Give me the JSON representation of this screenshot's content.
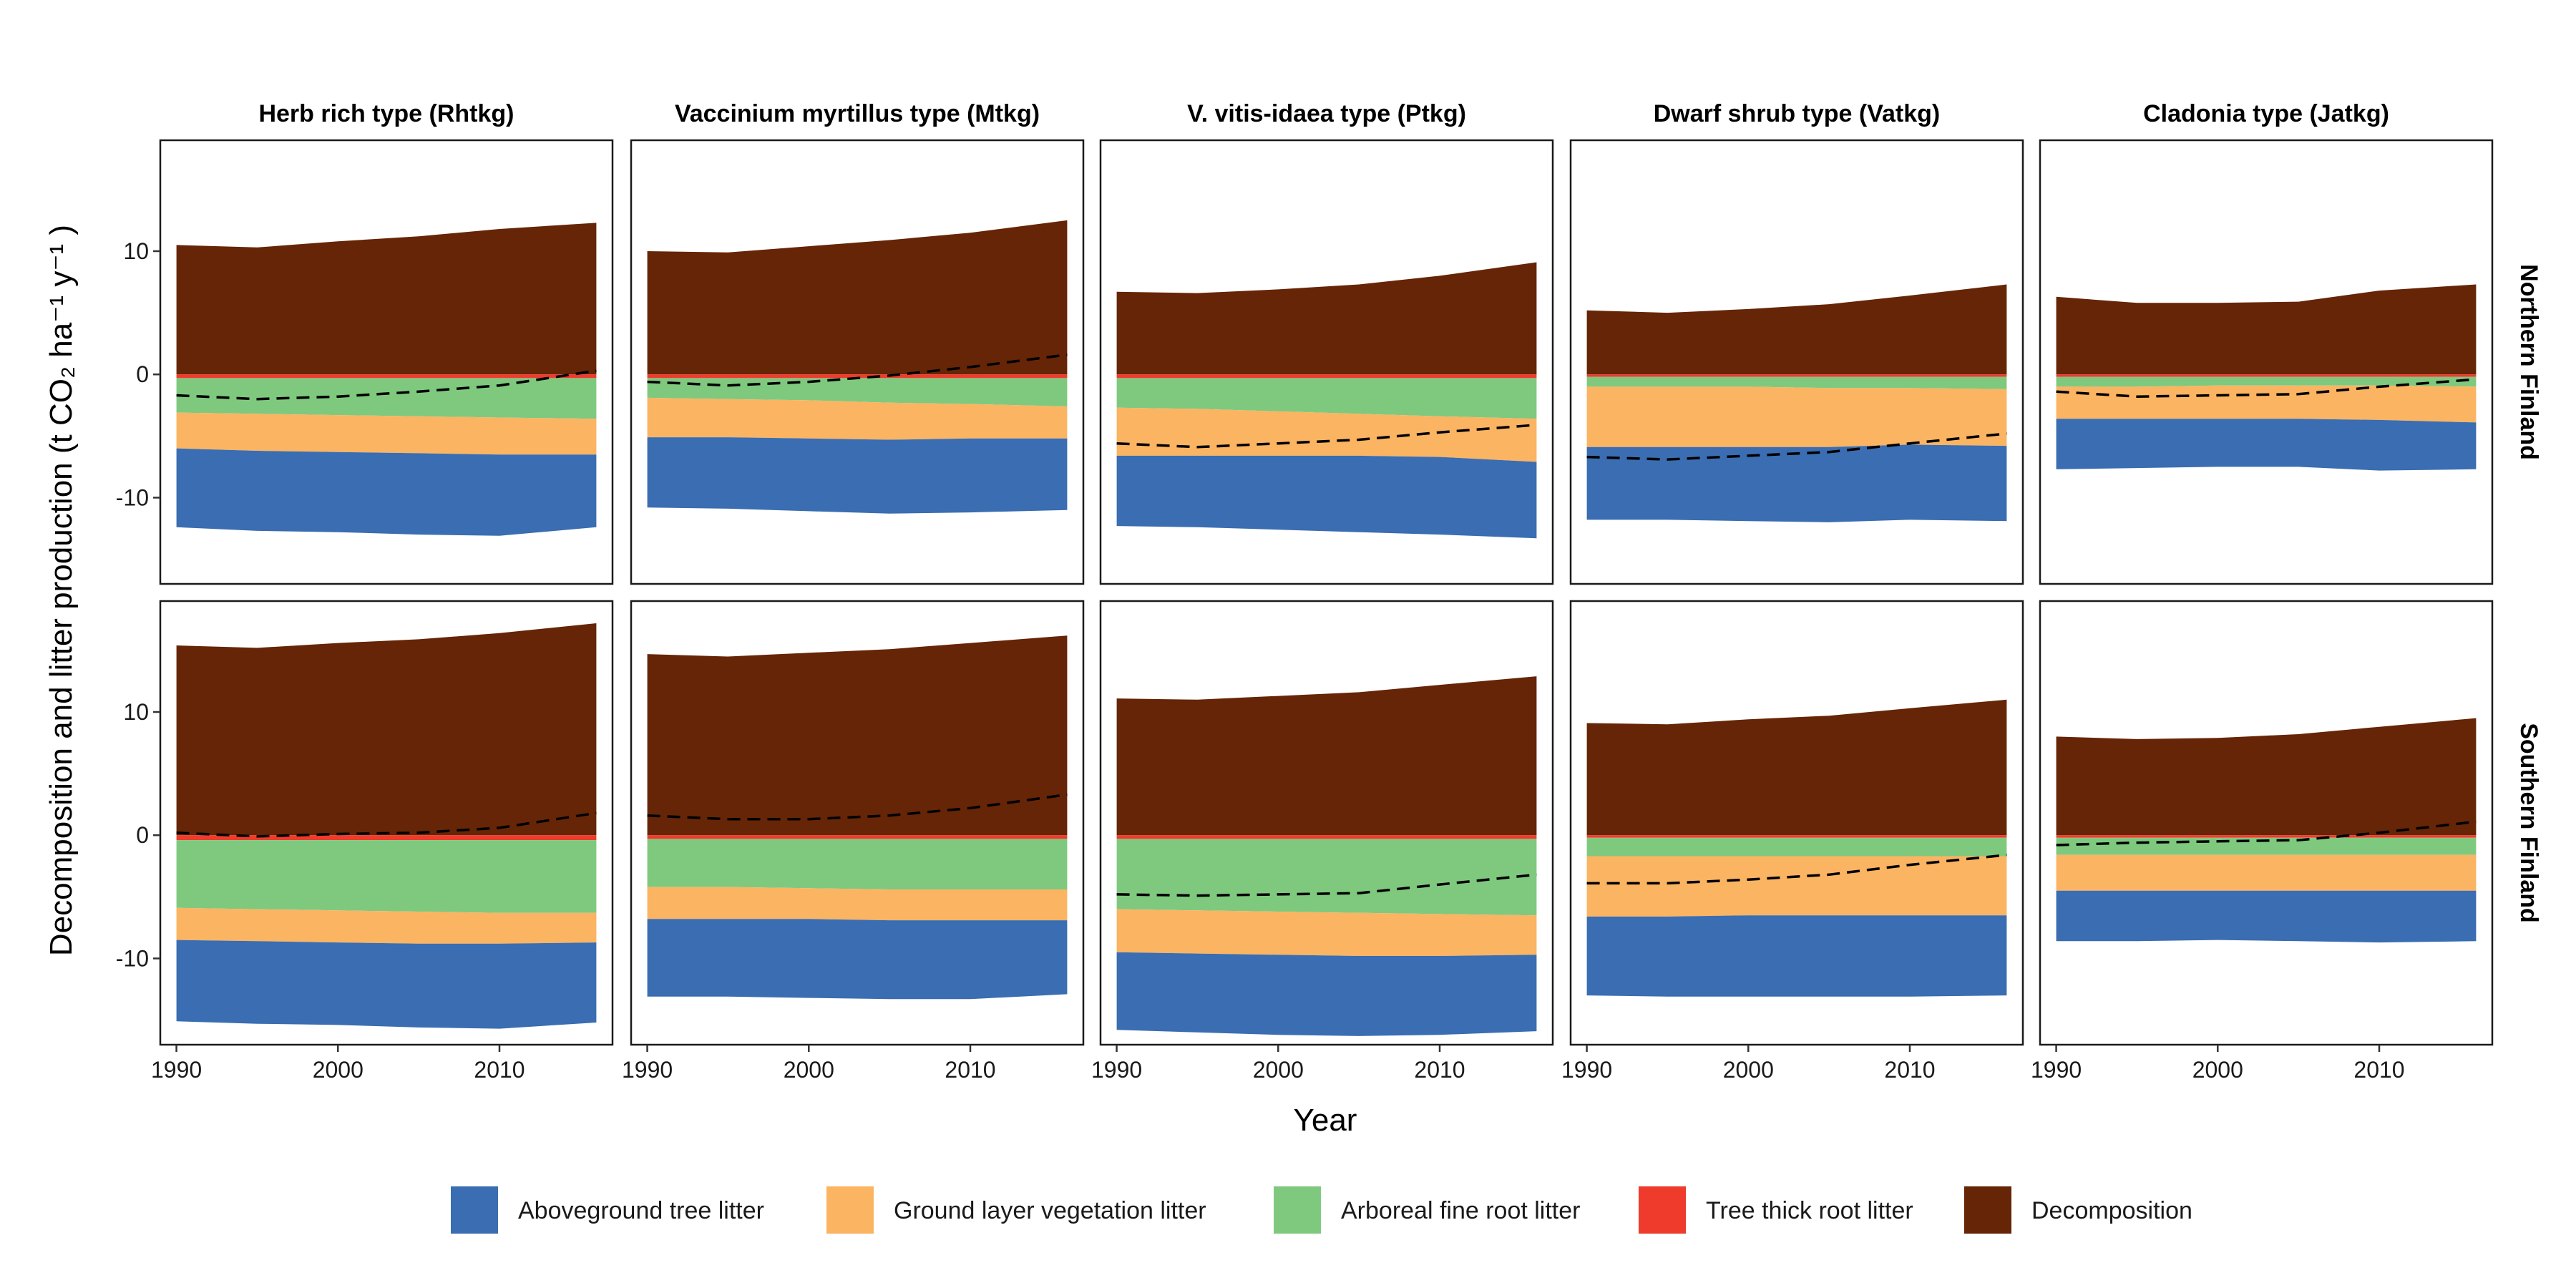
{
  "chart_data": {
    "type": "area",
    "xlabel": "Year",
    "ylabel": "Decomposition and litter production (t  CO₂ ha⁻¹ y⁻¹ )",
    "xlim": [
      1989,
      2017
    ],
    "ylim": [
      -17,
      19
    ],
    "x_ticks": [
      "1990",
      "2000",
      "2010"
    ],
    "y_ticks": [
      "10",
      "0",
      "-10"
    ],
    "x": [
      1990,
      1995,
      2000,
      2005,
      2010,
      2016
    ],
    "columns": [
      "Herb rich type (Rhtkg)",
      "Vaccinium myrtillus type (Mtkg)",
      "V. vitis-idaea type (Ptkg)",
      "Dwarf shrub type (Vatkg)",
      "Cladonia type (Jatkg)"
    ],
    "rows": [
      "Northern Finland",
      "Southern Finland"
    ],
    "legend": {
      "position": "bottom",
      "entries": [
        {
          "name": "Aboveground tree litter",
          "color": "#3A6DB1"
        },
        {
          "name": "Ground layer vegetation litter",
          "color": "#FBB462"
        },
        {
          "name": "Arboreal fine root litter",
          "color": "#7FC97F"
        },
        {
          "name": "Tree thick root litter",
          "color": "#EE3B2B"
        },
        {
          "name": "Decomposition",
          "color": "#662506"
        }
      ]
    },
    "net_line_style": "dashed",
    "panels": [
      {
        "row": 0,
        "col": 0,
        "decomposition": [
          10.5,
          10.3,
          10.8,
          11.2,
          11.8,
          12.3
        ],
        "thick_root": [
          -0.3,
          -0.3,
          -0.3,
          -0.3,
          -0.3,
          -0.3
        ],
        "fine_root": [
          -2.8,
          -2.9,
          -3.0,
          -3.1,
          -3.2,
          -3.3
        ],
        "ground_layer": [
          -2.9,
          -3.0,
          -3.0,
          -3.0,
          -3.0,
          -2.9
        ],
        "aboveground": [
          -6.4,
          -6.5,
          -6.5,
          -6.6,
          -6.6,
          -5.9
        ],
        "net": [
          -1.7,
          -2.0,
          -1.8,
          -1.4,
          -0.9,
          0.3
        ]
      },
      {
        "row": 0,
        "col": 1,
        "decomposition": [
          10.0,
          9.9,
          10.4,
          10.9,
          11.5,
          12.5
        ],
        "thick_root": [
          -0.3,
          -0.3,
          -0.3,
          -0.3,
          -0.3,
          -0.3
        ],
        "fine_root": [
          -1.6,
          -1.7,
          -1.8,
          -2.0,
          -2.1,
          -2.3
        ],
        "ground_layer": [
          -3.2,
          -3.1,
          -3.1,
          -3.0,
          -2.8,
          -2.6
        ],
        "aboveground": [
          -5.7,
          -5.8,
          -5.9,
          -6.0,
          -6.0,
          -5.8
        ],
        "net": [
          -0.6,
          -0.9,
          -0.6,
          -0.1,
          0.6,
          1.6
        ]
      },
      {
        "row": 0,
        "col": 2,
        "decomposition": [
          6.7,
          6.6,
          6.9,
          7.3,
          8.0,
          9.1
        ],
        "thick_root": [
          -0.3,
          -0.3,
          -0.3,
          -0.3,
          -0.3,
          -0.3
        ],
        "fine_root": [
          -2.4,
          -2.5,
          -2.7,
          -2.9,
          -3.1,
          -3.3
        ],
        "ground_layer": [
          -3.9,
          -3.8,
          -3.6,
          -3.4,
          -3.3,
          -3.5
        ],
        "aboveground": [
          -5.7,
          -5.8,
          -6.0,
          -6.2,
          -6.3,
          -6.2
        ],
        "net": [
          -5.6,
          -5.9,
          -5.6,
          -5.3,
          -4.7,
          -4.1
        ]
      },
      {
        "row": 0,
        "col": 3,
        "decomposition": [
          5.2,
          5.0,
          5.3,
          5.7,
          6.4,
          7.3
        ],
        "thick_root": [
          -0.2,
          -0.2,
          -0.2,
          -0.2,
          -0.2,
          -0.2
        ],
        "fine_root": [
          -0.8,
          -0.8,
          -0.8,
          -0.9,
          -0.9,
          -1.0
        ],
        "ground_layer": [
          -4.9,
          -4.9,
          -4.9,
          -4.8,
          -4.6,
          -4.6
        ],
        "aboveground": [
          -5.9,
          -5.9,
          -6.0,
          -6.1,
          -6.1,
          -6.1
        ],
        "net": [
          -6.7,
          -6.9,
          -6.6,
          -6.3,
          -5.6,
          -4.8
        ]
      },
      {
        "row": 0,
        "col": 4,
        "decomposition": [
          6.3,
          5.8,
          5.8,
          5.9,
          6.8,
          7.3
        ],
        "thick_root": [
          -0.2,
          -0.2,
          -0.2,
          -0.2,
          -0.2,
          -0.2
        ],
        "fine_root": [
          -0.8,
          -0.8,
          -0.7,
          -0.7,
          -0.7,
          -0.8
        ],
        "ground_layer": [
          -2.6,
          -2.6,
          -2.7,
          -2.7,
          -2.8,
          -2.9
        ],
        "aboveground": [
          -4.1,
          -4.0,
          -3.9,
          -3.9,
          -4.1,
          -3.8
        ],
        "net": [
          -1.4,
          -1.8,
          -1.7,
          -1.6,
          -1.0,
          -0.4
        ]
      },
      {
        "row": 1,
        "col": 0,
        "decomposition": [
          15.4,
          15.2,
          15.6,
          15.9,
          16.4,
          17.2
        ],
        "thick_root": [
          -0.4,
          -0.4,
          -0.4,
          -0.4,
          -0.4,
          -0.4
        ],
        "fine_root": [
          -5.5,
          -5.6,
          -5.7,
          -5.8,
          -5.9,
          -5.9
        ],
        "ground_layer": [
          -2.6,
          -2.6,
          -2.6,
          -2.6,
          -2.5,
          -2.4
        ],
        "aboveground": [
          -6.6,
          -6.7,
          -6.7,
          -6.8,
          -6.9,
          -6.5
        ],
        "net": [
          0.2,
          -0.1,
          0.1,
          0.2,
          0.6,
          1.8
        ]
      },
      {
        "row": 1,
        "col": 1,
        "decomposition": [
          14.7,
          14.5,
          14.8,
          15.1,
          15.6,
          16.2
        ],
        "thick_root": [
          -0.3,
          -0.3,
          -0.3,
          -0.3,
          -0.3,
          -0.3
        ],
        "fine_root": [
          -3.9,
          -3.9,
          -4.0,
          -4.1,
          -4.1,
          -4.1
        ],
        "ground_layer": [
          -2.6,
          -2.6,
          -2.5,
          -2.5,
          -2.5,
          -2.5
        ],
        "aboveground": [
          -6.3,
          -6.3,
          -6.4,
          -6.4,
          -6.4,
          -6.0
        ],
        "net": [
          1.6,
          1.3,
          1.3,
          1.6,
          2.2,
          3.3
        ]
      },
      {
        "row": 1,
        "col": 2,
        "decomposition": [
          11.1,
          11.0,
          11.3,
          11.6,
          12.2,
          12.9
        ],
        "thick_root": [
          -0.3,
          -0.3,
          -0.3,
          -0.3,
          -0.3,
          -0.3
        ],
        "fine_root": [
          -5.7,
          -5.8,
          -5.9,
          -6.0,
          -6.1,
          -6.2
        ],
        "ground_layer": [
          -3.5,
          -3.5,
          -3.5,
          -3.5,
          -3.4,
          -3.2
        ],
        "aboveground": [
          -6.3,
          -6.4,
          -6.5,
          -6.5,
          -6.4,
          -6.2
        ],
        "net": [
          -4.8,
          -4.9,
          -4.8,
          -4.7,
          -4.0,
          -3.2
        ]
      },
      {
        "row": 1,
        "col": 3,
        "decomposition": [
          9.1,
          9.0,
          9.4,
          9.7,
          10.3,
          11.0
        ],
        "thick_root": [
          -0.2,
          -0.2,
          -0.2,
          -0.2,
          -0.2,
          -0.2
        ],
        "fine_root": [
          -1.5,
          -1.5,
          -1.5,
          -1.5,
          -1.5,
          -1.5
        ],
        "ground_layer": [
          -4.9,
          -4.9,
          -4.8,
          -4.8,
          -4.8,
          -4.8
        ],
        "aboveground": [
          -6.4,
          -6.5,
          -6.6,
          -6.6,
          -6.6,
          -6.5
        ],
        "net": [
          -3.9,
          -3.9,
          -3.6,
          -3.2,
          -2.4,
          -1.6
        ]
      },
      {
        "row": 1,
        "col": 4,
        "decomposition": [
          8.0,
          7.8,
          7.9,
          8.2,
          8.8,
          9.5
        ],
        "thick_root": [
          -0.2,
          -0.2,
          -0.2,
          -0.2,
          -0.2,
          -0.2
        ],
        "fine_root": [
          -1.4,
          -1.4,
          -1.4,
          -1.4,
          -1.4,
          -1.4
        ],
        "ground_layer": [
          -2.9,
          -2.9,
          -2.9,
          -2.9,
          -2.9,
          -2.9
        ],
        "aboveground": [
          -4.1,
          -4.1,
          -4.0,
          -4.1,
          -4.2,
          -4.1
        ],
        "net": [
          -0.8,
          -0.6,
          -0.5,
          -0.4,
          0.2,
          1.1
        ]
      }
    ]
  }
}
